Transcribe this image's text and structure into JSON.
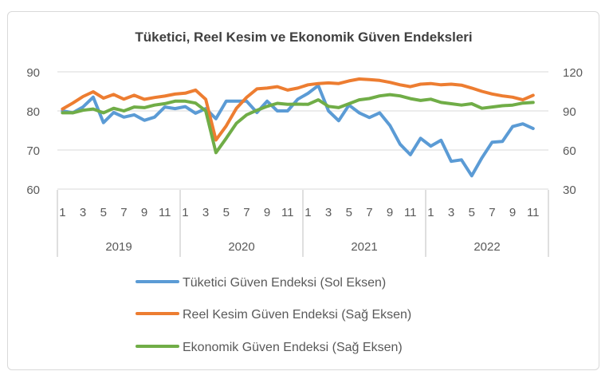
{
  "chart_data": {
    "type": "line",
    "title": "Tüketici, Reel Kesim ve Ekonomik Güven Endeksleri",
    "left_axis": {
      "ylim": [
        60,
        90
      ],
      "ticks": [
        "60",
        "70",
        "80",
        "90"
      ]
    },
    "right_axis": {
      "ylim": [
        30,
        120
      ],
      "ticks": [
        "30",
        "60",
        "90",
        "120"
      ]
    },
    "years": [
      "2019",
      "2020",
      "2021",
      "2022"
    ],
    "month_labels": [
      "1",
      "3",
      "5",
      "7",
      "9",
      "11"
    ],
    "series": [
      {
        "name": "Tüketici Güven Endeksi (Sol Eksen)",
        "axis": "left",
        "color": "#5b9bd5",
        "values": [
          80.0,
          79.5,
          81.0,
          83.5,
          77.0,
          79.6,
          78.4,
          79.0,
          77.6,
          78.4,
          81.0,
          80.6,
          81.1,
          79.4,
          80.6,
          78.0,
          82.5,
          82.5,
          82.5,
          79.6,
          82.5,
          80.0,
          80.0,
          83.0,
          84.5,
          86.5,
          80.0,
          77.5,
          81.5,
          79.5,
          78.3,
          79.5,
          76.3,
          71.5,
          68.8,
          73.0,
          71.0,
          72.5,
          67.1,
          67.5,
          63.4,
          68.0,
          72.0,
          72.2,
          76.0,
          76.7,
          75.5
        ]
      },
      {
        "name": "Reel Kesim Güven Endeksi (Sağ Eksen)",
        "axis": "right",
        "color": "#ed7d31",
        "values": [
          91.5,
          96.0,
          101.0,
          104.7,
          99.8,
          102.6,
          99.0,
          102.0,
          98.9,
          100.3,
          101.4,
          102.9,
          103.6,
          106.0,
          98.9,
          67.7,
          78.5,
          92.0,
          100.4,
          106.9,
          107.5,
          108.6,
          106.0,
          107.5,
          110.0,
          111.0,
          111.5,
          111.0,
          113.0,
          114.5,
          114.0,
          113.4,
          111.9,
          110.0,
          108.6,
          110.5,
          111.0,
          110.0,
          110.5,
          109.8,
          107.5,
          105.0,
          103.0,
          101.5,
          100.5,
          98.5,
          102.0
        ]
      },
      {
        "name": "Ekonomik Güven Endeksi (Sağ Eksen)",
        "axis": "right",
        "color": "#70ad47",
        "values": [
          88.5,
          88.5,
          90.5,
          91.5,
          88.5,
          92.0,
          90.0,
          93.0,
          92.5,
          94.5,
          95.6,
          97.5,
          97.5,
          96.0,
          90.0,
          58.0,
          69.0,
          80.5,
          87.0,
          90.5,
          93.5,
          95.8,
          95.0,
          95.2,
          95.0,
          98.5,
          93.5,
          92.5,
          95.5,
          98.5,
          99.5,
          101.5,
          102.5,
          101.5,
          99.4,
          98.0,
          99.0,
          96.5,
          95.5,
          94.5,
          95.5,
          92.0,
          93.0,
          94.0,
          94.5,
          96.0,
          96.5
        ]
      }
    ]
  }
}
